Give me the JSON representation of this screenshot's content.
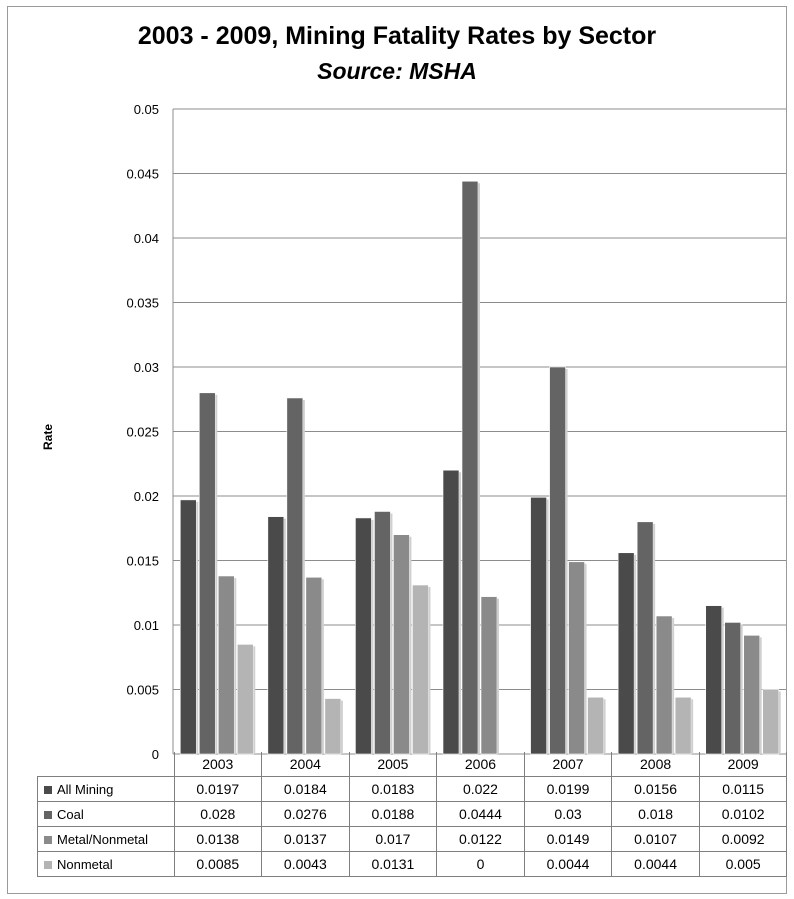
{
  "chart_data": {
    "type": "bar",
    "title": "2003 - 2009, Mining Fatality Rates by Sector",
    "subtitle": "Source: MSHA",
    "ylabel": "Rate",
    "xlabel": "",
    "ylim": [
      0,
      0.05
    ],
    "yticks": [
      "0",
      "0.005",
      "0.01",
      "0.015",
      "0.02",
      "0.025",
      "0.03",
      "0.035",
      "0.04",
      "0.045",
      "0.05"
    ],
    "grid": true,
    "legend": "data-table-below",
    "categories": [
      "2003",
      "2004",
      "2005",
      "2006",
      "2007",
      "2008",
      "2009"
    ],
    "series": [
      {
        "name": "All Mining",
        "color": "#4a4a4a",
        "values": [
          0.0197,
          0.0184,
          0.0183,
          0.022,
          0.0199,
          0.0156,
          0.0115
        ],
        "labels": [
          "0.0197",
          "0.0184",
          "0.0183",
          "0.022",
          "0.0199",
          "0.0156",
          "0.0115"
        ]
      },
      {
        "name": "Coal",
        "color": "#646464",
        "values": [
          0.028,
          0.0276,
          0.0188,
          0.0444,
          0.03,
          0.018,
          0.0102
        ],
        "labels": [
          "0.028",
          "0.0276",
          "0.0188",
          "0.0444",
          "0.03",
          "0.018",
          "0.0102"
        ]
      },
      {
        "name": "Metal/Nonmetal",
        "color": "#8a8a8a",
        "values": [
          0.0138,
          0.0137,
          0.017,
          0.0122,
          0.0149,
          0.0107,
          0.0092
        ],
        "labels": [
          "0.0138",
          "0.0137",
          "0.017",
          "0.0122",
          "0.0149",
          "0.0107",
          "0.0092"
        ]
      },
      {
        "name": "Nonmetal",
        "color": "#b4b4b4",
        "values": [
          0.0085,
          0.0043,
          0.0131,
          0,
          0.0044,
          0.0044,
          0.005
        ],
        "labels": [
          "0.0085",
          "0.0043",
          "0.0131",
          "0",
          "0.0044",
          "0.0044",
          "0.005"
        ]
      }
    ]
  }
}
